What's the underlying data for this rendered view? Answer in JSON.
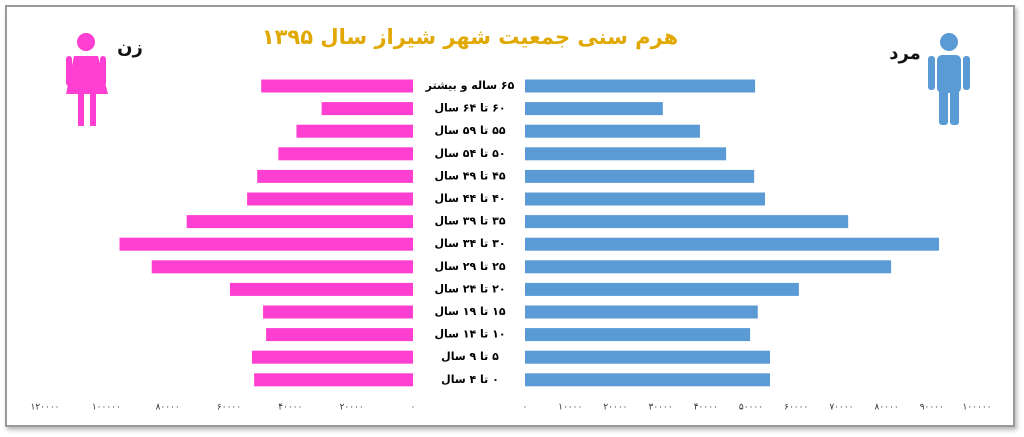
{
  "chart_data": {
    "type": "pyramid",
    "title": "هرم سنی جمعیت شهر شیراز سال ۱۳۹۵",
    "categories": [
      "۶۵ ساله و بیشتر",
      "۶۰ تا ۶۴ سال",
      "۵۵ تا ۵۹ سال",
      "۵۰ تا ۵۴ سال",
      "۴۵ تا ۴۹ سال",
      "۴۰ تا ۴۴ سال",
      "۳۵ تا ۳۹ سال",
      "۳۰ تا ۳۴ سال",
      "۲۵ تا ۲۹ سال",
      "۲۰ تا ۲۴ سال",
      "۱۵ تا ۱۹ سال",
      "۱۰ تا ۱۴ سال",
      "۵ تا ۹ سال",
      "۰ تا ۴ سال"
    ],
    "series": [
      {
        "name": "زن",
        "color": "#ff3fd2",
        "values": [
          49500,
          29800,
          38000,
          43900,
          50800,
          54100,
          73800,
          95700,
          85200,
          59700,
          48900,
          47900,
          52500,
          51800
        ],
        "xlim": [
          0,
          120000
        ],
        "xticks": [
          {
            "value": 0,
            "label": "۰"
          },
          {
            "value": 20000,
            "label": "۲۰۰۰۰"
          },
          {
            "value": 40000,
            "label": "۴۰۰۰۰"
          },
          {
            "value": 60000,
            "label": "۶۰۰۰۰"
          },
          {
            "value": 80000,
            "label": "۸۰۰۰۰"
          },
          {
            "value": 100000,
            "label": "۱۰۰۰۰۰"
          },
          {
            "value": 120000,
            "label": "۱۲۰۰۰۰"
          }
        ]
      },
      {
        "name": "مرد",
        "color": "#5b9bd5",
        "values": [
          50900,
          30500,
          38700,
          44500,
          50700,
          53100,
          71500,
          91600,
          81000,
          60600,
          51500,
          49800,
          54200,
          54200
        ],
        "xlim": [
          0,
          100000
        ],
        "xticks": [
          {
            "value": 0,
            "label": "۰"
          },
          {
            "value": 10000,
            "label": "۱۰۰۰۰"
          },
          {
            "value": 20000,
            "label": "۲۰۰۰۰"
          },
          {
            "value": 30000,
            "label": "۳۰۰۰۰"
          },
          {
            "value": 40000,
            "label": "۴۰۰۰۰"
          },
          {
            "value": 50000,
            "label": "۵۰۰۰۰"
          },
          {
            "value": 60000,
            "label": "۶۰۰۰۰"
          },
          {
            "value": 70000,
            "label": "۷۰۰۰۰"
          },
          {
            "value": 80000,
            "label": "۸۰۰۰۰"
          },
          {
            "value": 90000,
            "label": "۹۰۰۰۰"
          },
          {
            "value": 100000,
            "label": "۱۰۰۰۰۰"
          }
        ]
      }
    ]
  }
}
